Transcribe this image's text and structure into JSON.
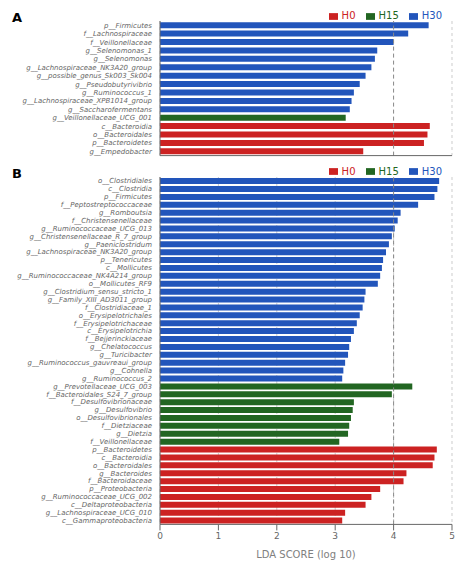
{
  "chart_data": [
    {
      "type": "bar",
      "orientation": "horizontal",
      "title": "A",
      "categories": [
        "p__Firmicutes",
        "f__Lachnospiraceae",
        "f__Veillonellaceae",
        "g__Selenomonas_1",
        "g__Selenomonas",
        "g__Lachnospiraceae_NK3A20_group",
        "g__possible_genus_Sk003_Sk004",
        "g__Pseudobutyrivibrio",
        "g__Ruminococcus_1",
        "g__Lachnospiraceae_XPB1014_group",
        "g__Saccharofermentans",
        "g__Veillonellaceae_UCG_001",
        "c__Bacteroidia",
        "o__Bacteroidales",
        "p__Bacteroidetes",
        "g__Empedobacter"
      ],
      "series": [
        {
          "name": "H0",
          "color": "#cc2222",
          "values": [
            null,
            null,
            null,
            null,
            null,
            null,
            null,
            null,
            null,
            null,
            null,
            null,
            4.62,
            4.58,
            4.52,
            3.48
          ]
        },
        {
          "name": "H15",
          "color": "#226622",
          "values": [
            null,
            null,
            null,
            null,
            null,
            null,
            null,
            null,
            null,
            null,
            null,
            3.18,
            null,
            null,
            null,
            null
          ]
        },
        {
          "name": "H30",
          "color": "#2255bb",
          "values": [
            4.6,
            4.25,
            4.0,
            3.72,
            3.68,
            3.62,
            3.52,
            3.42,
            3.32,
            3.28,
            3.25,
            null,
            null,
            null,
            null,
            null
          ]
        }
      ],
      "xlim": [
        0,
        5
      ],
      "xticks": [
        0,
        1,
        2,
        3,
        4,
        5
      ],
      "vline": 4.0,
      "grid": true,
      "legend": "top",
      "tick_labels": "y"
    },
    {
      "type": "bar",
      "orientation": "horizontal",
      "title": "B",
      "xlabel": "LDA SCORE (log 10)",
      "categories": [
        "o__Clostridiales",
        "c__Clostridia",
        "p__Firmicutes",
        "f__Peptostreptococcaceae",
        "g__Romboutsia",
        "f__Christensenellaceae",
        "g__Ruminococcaceae_UCG_013",
        "g__Christensenellaceae_R_7_group",
        "g__Paeniclostridum",
        "g__Lachnospiraceae_NK3A20_group",
        "p__Tenericutes",
        "c__Mollicutes",
        "g__Ruminococcaceae_NK4A214_group",
        "o__Mollicutes_RF9",
        "g__Clostridium_sensu_stricto_1",
        "g__Family_XIII_AD3011_group",
        "f__Clostridiaceae_1",
        "o__Erysipelotrichales",
        "f__Erysipelotrichaceae",
        "c__Erysipelotrichia",
        "f__Bejjerinckiaceae",
        "g__Chelatococcus",
        "g__Turicibacter",
        "g__Ruminococcus_gauvreaui_group",
        "g__Cohnella",
        "g__Ruminococcus_2",
        "g__Prevotellaceae_UCG_003",
        "f__Bacteroidales_S24_7_group",
        "f__Desulfovibrionaceae",
        "g__Desulfovibrio",
        "o__Desulfovibrionales",
        "f__Dietziaceae",
        "g__Dietzia",
        "f__Veillonellaceae",
        "p__Bacteroidetes",
        "c__Bacteroidia",
        "o__Bacteroidales",
        "g__Bacteroides",
        "f__Bacteroidaceae",
        "p__Proteobacteria",
        "g__Ruminococcaceae_UCG_002",
        "c__Deltaproteobacteria",
        "g__Lachnospiraceae_UCG_010",
        "c__Gammaproteobacteria"
      ],
      "series": [
        {
          "name": "H0",
          "color": "#cc2222",
          "values": [
            null,
            null,
            null,
            null,
            null,
            null,
            null,
            null,
            null,
            null,
            null,
            null,
            null,
            null,
            null,
            null,
            null,
            null,
            null,
            null,
            null,
            null,
            null,
            null,
            null,
            null,
            null,
            null,
            null,
            null,
            null,
            null,
            null,
            null,
            4.74,
            4.7,
            4.67,
            4.22,
            4.17,
            3.77,
            3.62,
            3.52,
            3.17,
            3.12
          ]
        },
        {
          "name": "H15",
          "color": "#226622",
          "values": [
            null,
            null,
            null,
            null,
            null,
            null,
            null,
            null,
            null,
            null,
            null,
            null,
            null,
            null,
            null,
            null,
            null,
            null,
            null,
            null,
            null,
            null,
            null,
            null,
            null,
            null,
            4.32,
            3.97,
            3.32,
            3.3,
            3.27,
            3.24,
            3.22,
            3.07,
            null,
            null,
            null,
            null,
            null,
            null,
            null,
            null,
            null,
            null
          ]
        },
        {
          "name": "H30",
          "color": "#2255bb",
          "values": [
            4.78,
            4.75,
            4.7,
            4.42,
            4.12,
            4.07,
            4.02,
            3.97,
            3.92,
            3.87,
            3.82,
            3.8,
            3.77,
            3.73,
            3.52,
            3.5,
            3.47,
            3.42,
            3.37,
            3.32,
            3.27,
            3.24,
            3.22,
            3.17,
            3.14,
            3.12,
            null,
            null,
            null,
            null,
            null,
            null,
            null,
            null,
            null,
            null,
            null,
            null,
            null,
            null,
            null,
            null,
            null,
            null
          ]
        }
      ],
      "xlim": [
        0,
        5
      ],
      "xticks": [
        0,
        1,
        2,
        3,
        4,
        5
      ],
      "vline": 4.0,
      "grid": true,
      "legend": "top"
    }
  ]
}
